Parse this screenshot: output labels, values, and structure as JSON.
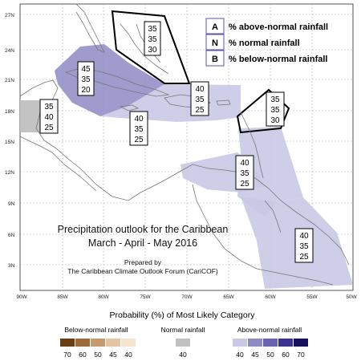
{
  "map": {
    "title_line1": "Precipitation outlook for the Caribbean",
    "title_line2": "March - April - May 2016",
    "prepared_line1": "Prepared by",
    "prepared_line2": "The Caribbean Climate Outlook Forum (CariCOF)",
    "lat_labels": [
      "27N",
      "24N",
      "21N",
      "18N",
      "15N",
      "12N",
      "9N",
      "6N",
      "3N"
    ],
    "lon_labels": [
      "90W",
      "85W",
      "80W",
      "75W",
      "70W",
      "65W",
      "60W",
      "55W",
      "50W"
    ],
    "key": [
      {
        "letter": "A",
        "text": "% above-normal rainfall"
      },
      {
        "letter": "N",
        "text": "% normal rainfall"
      },
      {
        "letter": "B",
        "text": "% below-normal rainfall"
      }
    ],
    "boxes": [
      {
        "id": "bahamas",
        "values": [
          "35",
          "35",
          "30"
        ]
      },
      {
        "id": "cuba",
        "values": [
          "45",
          "35",
          "20"
        ]
      },
      {
        "id": "belize",
        "values": [
          "35",
          "40",
          "25"
        ]
      },
      {
        "id": "hispaniola",
        "values": [
          "40",
          "35",
          "25"
        ]
      },
      {
        "id": "jamaica",
        "values": [
          "40",
          "35",
          "25"
        ]
      },
      {
        "id": "leeward",
        "values": [
          "35",
          "35",
          "30"
        ]
      },
      {
        "id": "windward",
        "values": [
          "40",
          "35",
          "25"
        ]
      },
      {
        "id": "guianas",
        "values": [
          "40",
          "35",
          "25"
        ]
      }
    ],
    "colors": {
      "above_40": "#c9c9e6",
      "above_45": "#8e8ac4",
      "normal_40": "#c0c0c0",
      "below_border": "#000000",
      "land": "#ffffff",
      "coast": "#777777"
    }
  },
  "legend": {
    "heading": "Probability (%) of Most Likely Category",
    "below_title": "Below-normal rainfall",
    "below_values": [
      "70",
      "60",
      "50",
      "45",
      "40"
    ],
    "below_colors": [
      "#6b3d12",
      "#9c6a3a",
      "#c69a6c",
      "#e3c4a2",
      "#f5e4d2"
    ],
    "normal_title": "Normal rainfall",
    "normal_value": "40",
    "normal_color": "#c0c0c0",
    "above_title": "Above-normal rainfall",
    "above_values": [
      "40",
      "45",
      "50",
      "60",
      "70"
    ],
    "above_colors": [
      "#c9c9e6",
      "#8e8ac4",
      "#6a63b0",
      "#3a3290",
      "#16105c"
    ]
  }
}
